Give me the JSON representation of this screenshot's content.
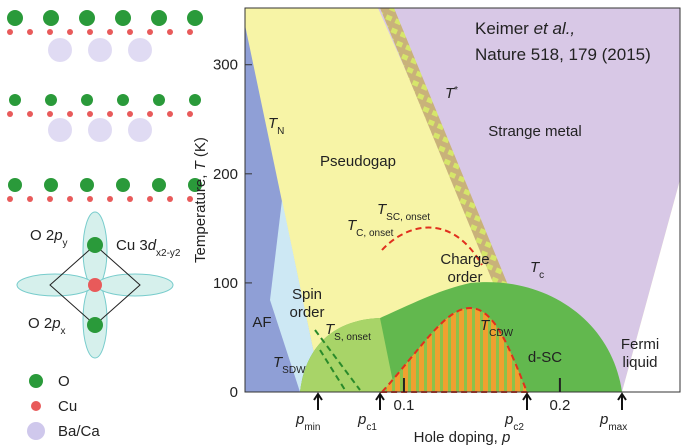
{
  "citation": {
    "author": "Keimer ",
    "etal": "et al.,",
    "journal": "Nature 518, 179 (2015)"
  },
  "plot": {
    "x_label": [
      "Hole doping, ",
      "p"
    ],
    "y_label": [
      "Temperature, ",
      "T",
      " (K)"
    ],
    "xlim": [
      0,
      0.277
    ],
    "ylim": [
      0,
      352
    ],
    "xticks": [
      0.1,
      0.2
    ],
    "yticks": [
      0,
      100,
      200,
      300
    ],
    "markers": [
      [
        "p",
        "min"
      ],
      [
        "p",
        "c1"
      ],
      [
        "p",
        "c2"
      ],
      [
        "p",
        "max"
      ]
    ],
    "labels": [
      [
        "T",
        "N"
      ],
      [
        "T",
        "*"
      ],
      [
        "Strange metal"
      ],
      [
        "Pseudogap"
      ],
      [
        "T",
        "SC, onset"
      ],
      [
        "T",
        "C, onset"
      ],
      [
        "Charge"
      ],
      [
        "order"
      ],
      [
        "T",
        "c"
      ],
      [
        "Spin"
      ],
      [
        "order"
      ],
      [
        "AF"
      ],
      [
        "T",
        "S, onset"
      ],
      [
        "T",
        "CDW"
      ],
      [
        "T",
        "SDW"
      ],
      [
        "d-SC"
      ],
      [
        "Fermi"
      ],
      [
        "liquid"
      ]
    ]
  },
  "structure": {
    "orbitals": [
      [
        "O 2",
        "p",
        "y"
      ],
      [
        "Cu 3",
        "d",
        "x2-y2"
      ],
      [
        "O 2",
        "p",
        "x"
      ]
    ],
    "legend": [
      "O",
      "Cu",
      "Ba/Ca"
    ]
  }
}
